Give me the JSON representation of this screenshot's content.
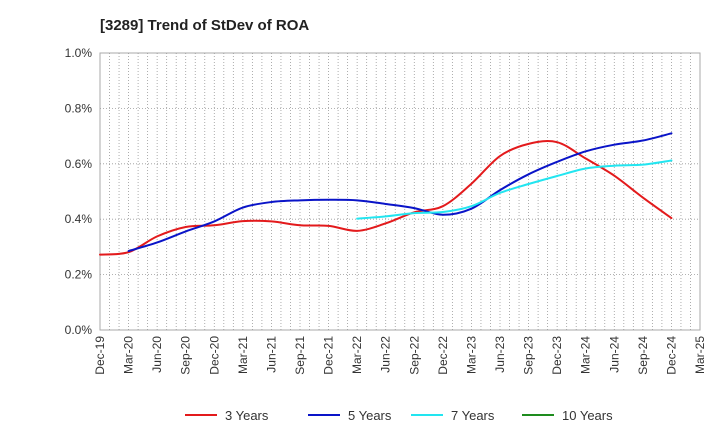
{
  "chart_data": {
    "type": "line",
    "title": "[3289]  Trend of StDev of ROA",
    "xlabel": "",
    "ylabel": "",
    "ylim": [
      0,
      1.0
    ],
    "y_ticks": [
      0.0,
      0.2,
      0.4,
      0.6,
      0.8,
      1.0
    ],
    "y_tick_labels": [
      "0.0%",
      "0.2%",
      "0.4%",
      "0.6%",
      "0.8%",
      "1.0%"
    ],
    "x_tick_labels": [
      "Dec-19",
      "Mar-20",
      "Jun-20",
      "Sep-20",
      "Dec-20",
      "Mar-21",
      "Jun-21",
      "Sep-21",
      "Dec-21",
      "Mar-22",
      "Jun-22",
      "Sep-22",
      "Dec-22",
      "Mar-23",
      "Jun-23",
      "Sep-23",
      "Dec-23",
      "Mar-24",
      "Jun-24",
      "Sep-24",
      "Dec-24",
      "Mar-25"
    ],
    "grid": true,
    "legend_position": "bottom",
    "series": [
      {
        "name": "3 Years",
        "color": "#e31a1c",
        "x": [
          "Dec-19",
          "Mar-20",
          "Jun-20",
          "Sep-20",
          "Dec-20",
          "Mar-21",
          "Jun-21",
          "Sep-21",
          "Dec-21",
          "Mar-22",
          "Jun-22",
          "Sep-22",
          "Dec-22",
          "Mar-23",
          "Jun-23",
          "Sep-23",
          "Dec-23",
          "Mar-24",
          "Jun-24",
          "Sep-24",
          "Dec-24"
        ],
        "values": [
          0.272,
          0.281,
          0.338,
          0.372,
          0.378,
          0.393,
          0.392,
          0.378,
          0.376,
          0.358,
          0.385,
          0.425,
          0.447,
          0.528,
          0.628,
          0.672,
          0.678,
          0.619,
          0.557,
          0.478,
          0.404
        ]
      },
      {
        "name": "5 Years",
        "color": "#0a14c8",
        "x": [
          "Mar-20",
          "Jun-20",
          "Sep-20",
          "Dec-20",
          "Mar-21",
          "Jun-21",
          "Sep-21",
          "Dec-21",
          "Mar-22",
          "Jun-22",
          "Sep-22",
          "Dec-22",
          "Mar-23",
          "Jun-23",
          "Sep-23",
          "Dec-23",
          "Mar-24",
          "Jun-24",
          "Sep-24",
          "Dec-24"
        ],
        "values": [
          0.285,
          0.316,
          0.356,
          0.392,
          0.442,
          0.462,
          0.468,
          0.47,
          0.468,
          0.455,
          0.44,
          0.416,
          0.438,
          0.505,
          0.562,
          0.607,
          0.645,
          0.669,
          0.684,
          0.71
        ]
      },
      {
        "name": "7 Years",
        "color": "#22e5f0",
        "x": [
          "Mar-22",
          "Jun-22",
          "Sep-22",
          "Dec-22",
          "Mar-23",
          "Jun-23",
          "Sep-23",
          "Dec-23",
          "Mar-24",
          "Jun-24",
          "Sep-24",
          "Dec-24"
        ],
        "values": [
          0.402,
          0.41,
          0.422,
          0.426,
          0.447,
          0.495,
          0.527,
          0.556,
          0.583,
          0.593,
          0.597,
          0.612
        ]
      },
      {
        "name": "10 Years",
        "color": "#1e8c1e",
        "x": [],
        "values": []
      }
    ]
  }
}
